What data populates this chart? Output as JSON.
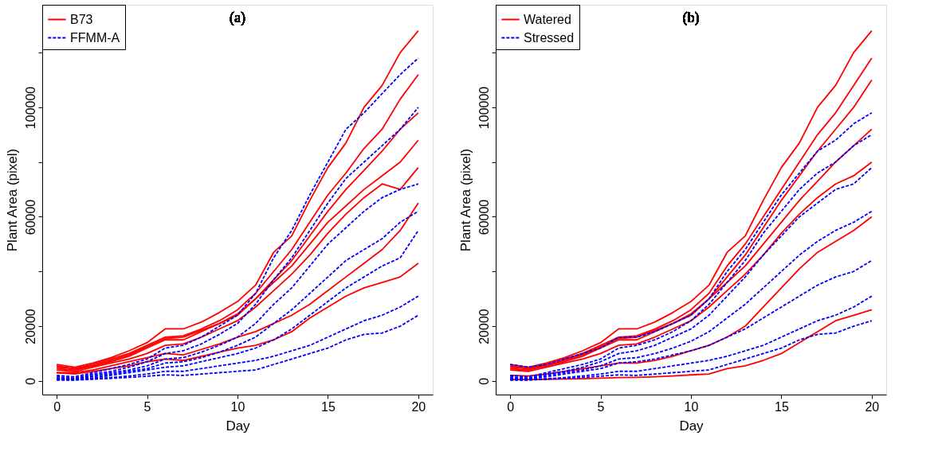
{
  "chart_data": [
    {
      "type": "line",
      "title": "(a)",
      "xlabel": "Day",
      "ylabel": "Plant Area (pixel)",
      "legend": "top left",
      "grid": false,
      "x": [
        0,
        1,
        2,
        3,
        4,
        5,
        6,
        7,
        8,
        9,
        10,
        11,
        12,
        13,
        14,
        15,
        16,
        17,
        18,
        19,
        20
      ],
      "xlim": [
        -0.8,
        20.8
      ],
      "xticks": [
        0,
        5,
        10,
        15,
        20
      ],
      "ylim": [
        -5000,
        137500
      ],
      "yticks": [
        0,
        20000,
        {
          "value": 40000,
          "label": null
        },
        60000,
        {
          "value": 80000,
          "label": null
        },
        100000,
        {
          "value": 120000,
          "label": null
        }
      ],
      "series": [
        {
          "name": "B73",
          "color": "#ff0000",
          "line_style": "solid",
          "values": [
            6000,
            5000,
            6500,
            8500,
            11000,
            14000,
            19000,
            19000,
            21500,
            25000,
            29000,
            35000,
            47000,
            53000,
            66000,
            78000,
            87000,
            100000,
            108000,
            120000,
            128000
          ]
        },
        {
          "color": "#ff0000",
          "line_style": "solid",
          "values": [
            5000,
            4500,
            6000,
            8000,
            10000,
            13000,
            16000,
            16500,
            19000,
            22000,
            26000,
            32000,
            40000,
            48000,
            58000,
            68000,
            76000,
            85000,
            92000,
            103000,
            112000
          ]
        },
        {
          "color": "#ff0000",
          "line_style": "solid",
          "values": [
            4500,
            4000,
            5500,
            7000,
            9000,
            12000,
            15000,
            15000,
            18000,
            21000,
            24000,
            30000,
            37000,
            44000,
            53000,
            62000,
            70000,
            77000,
            84000,
            92000,
            98000
          ]
        },
        {
          "color": "#ff0000",
          "line_style": "solid",
          "values": [
            5500,
            4500,
            5500,
            7500,
            9500,
            12500,
            15500,
            16000,
            18500,
            21000,
            24500,
            30000,
            36000,
            42000,
            50000,
            58000,
            64000,
            70000,
            75000,
            80000,
            88000
          ]
        },
        {
          "color": "#ff0000",
          "line_style": "solid",
          "values": [
            4000,
            3500,
            5000,
            6500,
            8000,
            10000,
            13000,
            13500,
            16000,
            19000,
            22000,
            27000,
            33000,
            39000,
            46000,
            54000,
            61000,
            67000,
            72000,
            70000,
            78000
          ]
        },
        {
          "color": "#ff0000",
          "line_style": "solid",
          "values": [
            3000,
            3000,
            4000,
            5500,
            7000,
            8500,
            10000,
            9500,
            11500,
            13500,
            16000,
            18000,
            21000,
            24000,
            28000,
            33000,
            38000,
            43000,
            48000,
            55000,
            65000
          ]
        },
        {
          "color": "#ff0000",
          "line_style": "solid",
          "values": [
            3000,
            2500,
            3500,
            4500,
            5500,
            7000,
            8000,
            7500,
            9000,
            10500,
            12000,
            13000,
            15000,
            18000,
            23000,
            27000,
            31000,
            34000,
            36000,
            38000,
            43000
          ]
        },
        {
          "name": "FFMM-A",
          "color": "#0000ff",
          "line_style": "dashed",
          "values": [
            2000,
            1500,
            3000,
            4500,
            6000,
            8000,
            12000,
            13000,
            16000,
            20000,
            24000,
            32000,
            45000,
            55000,
            68000,
            80000,
            92000,
            98000,
            105000,
            112000,
            118000
          ]
        },
        {
          "color": "#0000ff",
          "line_style": "dashed",
          "values": [
            1500,
            1000,
            2500,
            3500,
            5000,
            7000,
            10000,
            11000,
            13500,
            17000,
            21000,
            28000,
            37000,
            45000,
            55000,
            65000,
            74000,
            80000,
            86000,
            92000,
            100000
          ]
        },
        {
          "color": "#0000ff",
          "line_style": "dashed",
          "values": [
            1000,
            800,
            2000,
            3000,
            4000,
            5500,
            8000,
            8500,
            10500,
            13000,
            16000,
            21000,
            28000,
            34000,
            42000,
            50000,
            56000,
            62000,
            67000,
            70000,
            72000
          ]
        },
        {
          "color": "#0000ff",
          "line_style": "dashed",
          "values": [
            1000,
            700,
            1500,
            2500,
            3500,
            4500,
            6500,
            7000,
            8500,
            10500,
            13000,
            16000,
            21000,
            26000,
            32000,
            38000,
            44000,
            48000,
            52000,
            58000,
            62000
          ]
        },
        {
          "color": "#0000ff",
          "line_style": "dashed",
          "values": [
            500,
            500,
            1000,
            2000,
            3000,
            4000,
            5000,
            5500,
            7000,
            8500,
            10000,
            12000,
            15000,
            19000,
            24000,
            29000,
            34000,
            38000,
            42000,
            45000,
            55000
          ]
        },
        {
          "color": "#0000ff",
          "line_style": "dashed",
          "values": [
            500,
            400,
            800,
            1200,
            1800,
            2500,
            3500,
            3500,
            4500,
            5500,
            6500,
            7500,
            9000,
            11000,
            13000,
            16000,
            19000,
            22000,
            24000,
            27000,
            31000
          ]
        },
        {
          "color": "#0000ff",
          "line_style": "dashed",
          "values": [
            300,
            300,
            600,
            900,
            1300,
            1700,
            2200,
            2000,
            2500,
            3000,
            3500,
            4000,
            6000,
            8000,
            10000,
            12000,
            15000,
            17000,
            17500,
            20000,
            24000
          ]
        }
      ]
    },
    {
      "type": "line",
      "title": "(b)",
      "xlabel": "Day",
      "ylabel": "Plant Area (pixel)",
      "legend": "top left",
      "grid": false,
      "x": [
        0,
        1,
        2,
        3,
        4,
        5,
        6,
        7,
        8,
        9,
        10,
        11,
        12,
        13,
        14,
        15,
        16,
        17,
        18,
        19,
        20
      ],
      "xlim": [
        -0.8,
        20.8
      ],
      "xticks": [
        0,
        5,
        10,
        15,
        20
      ],
      "ylim": [
        -5000,
        137500
      ],
      "yticks": [
        0,
        20000,
        {
          "value": 40000,
          "label": null
        },
        60000,
        {
          "value": 80000,
          "label": null
        },
        100000,
        {
          "value": 120000,
          "label": null
        }
      ],
      "series": [
        {
          "name": "Watered",
          "color": "#ff0000",
          "line_style": "solid",
          "values": [
            6000,
            5000,
            6500,
            8500,
            11000,
            14000,
            19000,
            19000,
            21500,
            25000,
            29000,
            35000,
            47000,
            53000,
            66000,
            78000,
            87000,
            100000,
            108000,
            120000,
            128000
          ]
        },
        {
          "color": "#ff0000",
          "line_style": "solid",
          "values": [
            5000,
            4500,
            6000,
            8000,
            10000,
            13000,
            16000,
            16500,
            19000,
            22000,
            26000,
            32000,
            42000,
            50000,
            60000,
            70000,
            80000,
            90000,
            98000,
            108000,
            118000
          ]
        },
        {
          "color": "#ff0000",
          "line_style": "solid",
          "values": [
            4500,
            4000,
            5500,
            7000,
            9000,
            12000,
            15000,
            15000,
            18000,
            21000,
            24000,
            30000,
            38000,
            46000,
            56000,
            66000,
            75000,
            84000,
            92000,
            100000,
            110000
          ]
        },
        {
          "color": "#ff0000",
          "line_style": "solid",
          "values": [
            5500,
            4500,
            5500,
            7500,
            9500,
            12500,
            15500,
            16000,
            18500,
            21000,
            24500,
            30000,
            36000,
            42000,
            50000,
            58000,
            66000,
            73000,
            80000,
            86000,
            92000
          ]
        },
        {
          "color": "#ff0000",
          "line_style": "solid",
          "values": [
            4000,
            3500,
            5000,
            6500,
            8000,
            10000,
            13000,
            13500,
            16000,
            19000,
            22000,
            27000,
            33000,
            39000,
            46000,
            54000,
            61000,
            67000,
            72000,
            75000,
            80000
          ]
        },
        {
          "color": "#ff0000",
          "line_style": "solid",
          "values": [
            2000,
            1800,
            2500,
            3500,
            4500,
            5500,
            6500,
            6500,
            7500,
            9000,
            11000,
            13000,
            16000,
            20000,
            27000,
            34000,
            41000,
            47000,
            51000,
            55000,
            60000
          ]
        },
        {
          "color": "#ff0000",
          "line_style": "solid",
          "values": [
            500,
            500,
            600,
            700,
            800,
            1000,
            1200,
            1300,
            1500,
            1800,
            2200,
            2500,
            4500,
            5500,
            7500,
            10000,
            14000,
            18000,
            22000,
            24000,
            26000
          ]
        },
        {
          "name": "Stressed",
          "color": "#0000ff",
          "line_style": "dashed",
          "values": [
            6000,
            5000,
            6000,
            8000,
            10000,
            12000,
            16000,
            16000,
            18000,
            21000,
            24000,
            30000,
            40000,
            48000,
            58000,
            68000,
            76000,
            84000,
            88000,
            94000,
            98000
          ]
        },
        {
          "color": "#0000ff",
          "line_style": "dashed",
          "values": [
            2000,
            1500,
            3000,
            4500,
            6000,
            8000,
            12000,
            13000,
            15000,
            18000,
            22000,
            28000,
            36000,
            44000,
            54000,
            62000,
            70000,
            76000,
            80000,
            86000,
            90000
          ]
        },
        {
          "color": "#0000ff",
          "line_style": "dashed",
          "values": [
            1500,
            1000,
            2500,
            3500,
            5000,
            7000,
            10000,
            11000,
            13000,
            16000,
            19000,
            24000,
            31000,
            38000,
            46000,
            53000,
            60000,
            65000,
            70000,
            72000,
            78000
          ]
        },
        {
          "color": "#0000ff",
          "line_style": "dashed",
          "values": [
            1000,
            800,
            2000,
            3000,
            4000,
            5500,
            8000,
            8500,
            10000,
            12000,
            14500,
            18000,
            23000,
            28000,
            34000,
            40000,
            46000,
            51000,
            55000,
            58000,
            62000
          ]
        },
        {
          "color": "#0000ff",
          "line_style": "dashed",
          "values": [
            1000,
            700,
            1500,
            2500,
            3500,
            4500,
            6500,
            7000,
            8000,
            9500,
            11000,
            13000,
            16000,
            19000,
            23000,
            27000,
            31000,
            35000,
            38000,
            40000,
            44000
          ]
        },
        {
          "color": "#0000ff",
          "line_style": "dashed",
          "values": [
            500,
            400,
            800,
            1200,
            1800,
            2500,
            3500,
            3500,
            4500,
            5500,
            6500,
            7500,
            9000,
            11000,
            13000,
            16000,
            19000,
            22000,
            24000,
            27000,
            31000
          ]
        },
        {
          "color": "#0000ff",
          "line_style": "dashed",
          "values": [
            300,
            300,
            600,
            900,
            1300,
            1700,
            2200,
            2000,
            2500,
            3000,
            3500,
            4000,
            6000,
            8000,
            10000,
            12000,
            15000,
            17000,
            17500,
            20000,
            22000
          ]
        }
      ]
    }
  ]
}
